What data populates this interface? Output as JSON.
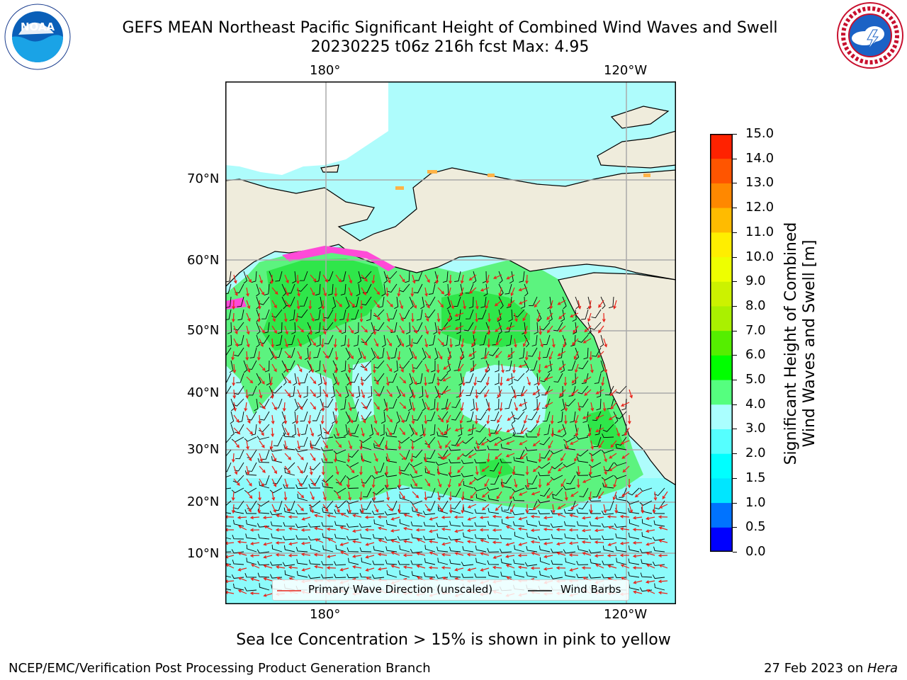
{
  "header": {
    "title_line1": "GEFS MEAN Northeast Pacific Significant Height of Combined Wind Waves and Swell",
    "title_line2": "20230225 t06z 216h fcst   Max: 4.95"
  },
  "logos": {
    "left": {
      "icon": "noaa-logo-icon",
      "text": "NOAA"
    },
    "right": {
      "icon": "nws-logo-icon",
      "text": "NATIONAL WEATHER SERVICE"
    }
  },
  "map": {
    "lon_labels": [
      "180°",
      "120°W"
    ],
    "lat_labels": [
      "70°N",
      "60°N",
      "50°N",
      "40°N",
      "30°N",
      "20°N",
      "10°N"
    ],
    "ocean_color": "#aefcfc",
    "land_color": "#efecdc",
    "wave_arrow_color": "#e8231a",
    "wind_barb_color": "#000000"
  },
  "legend": {
    "wave_label": "Primary Wave Direction (unscaled)",
    "wind_label": "Wind Barbs"
  },
  "colorbar": {
    "title_line1": "Significant Height of Combined",
    "title_line2": "Wind Waves and Swell [m]",
    "ticks": [
      "0.0",
      "0.5",
      "1.0",
      "1.5",
      "2.0",
      "3.0",
      "4.0",
      "5.0",
      "6.0",
      "7.0",
      "8.0",
      "9.0",
      "10.0",
      "11.0",
      "12.0",
      "13.0",
      "14.0",
      "15.0"
    ],
    "colors": [
      "#0000ff",
      "#0073ff",
      "#00e6ff",
      "#00ffff",
      "#55ffff",
      "#aaffff",
      "#55ff7f",
      "#00ff00",
      "#55ee00",
      "#aaf000",
      "#ccf200",
      "#eeff00",
      "#ffee00",
      "#ffbb00",
      "#ff8800",
      "#ff5500",
      "#ff2200",
      "#ff0000"
    ]
  },
  "note": "Sea Ice Concentration > 15% is shown in pink to yellow",
  "footer": {
    "left": "NCEP/EMC/Verification Post Processing Product Generation Branch",
    "right_date": "27 Feb 2023 on ",
    "right_machine": "Hera"
  }
}
